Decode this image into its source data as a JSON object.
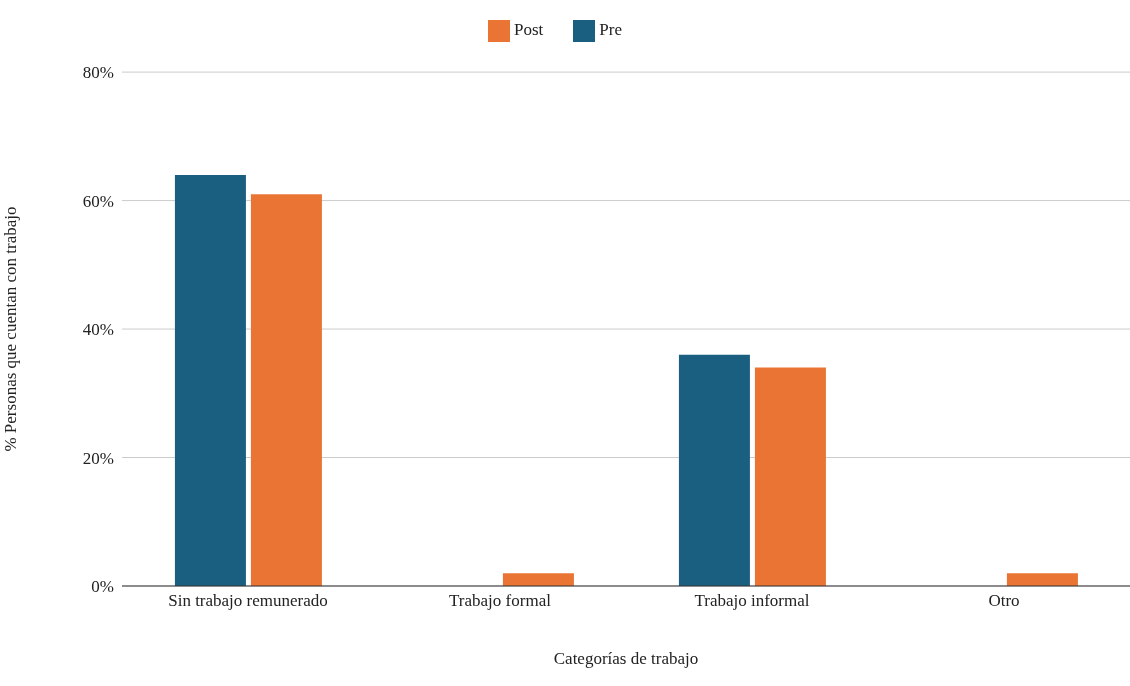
{
  "chart_data": {
    "type": "bar",
    "xlabel": "Categorías de trabajo",
    "ylabel": "% Personas que cuentan con trabajo",
    "categories": [
      "Sin trabajo remunerado",
      "Trabajo formal",
      "Trabajo informal",
      "Otro"
    ],
    "series": [
      {
        "name": "Pre",
        "color": "#1a5e80",
        "values": [
          64,
          0,
          36,
          0
        ]
      },
      {
        "name": "Post",
        "color": "#ea7434",
        "values": [
          61,
          2,
          34,
          2
        ]
      }
    ],
    "ylim": [
      0,
      80
    ],
    "yticks": [
      {
        "value": 0,
        "label": "0%"
      },
      {
        "value": 20,
        "label": "20%"
      },
      {
        "value": 40,
        "label": "40%"
      },
      {
        "value": 60,
        "label": "60%"
      },
      {
        "value": 80,
        "label": "80%"
      }
    ],
    "grid": "y",
    "legend": "top"
  }
}
